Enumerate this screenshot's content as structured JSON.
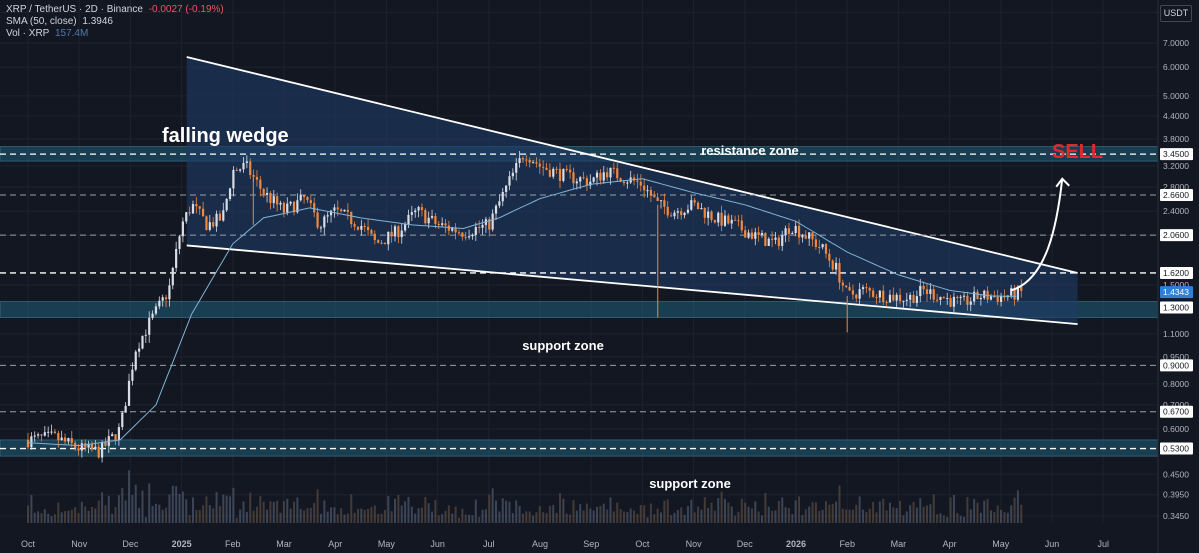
{
  "header": {
    "symbol": "XRP / TetherUS · 2D · Binance",
    "change": "-0.0027 (-0.19%)",
    "sma_label": "SMA (50, close)",
    "sma_value": "1.3946",
    "vol_label": "Vol · XRP",
    "vol_value": "157.4M",
    "currency_button": "USDT"
  },
  "colors": {
    "background": "#131722",
    "bull": "#d9dde6",
    "bear": "#f0883e",
    "sma": "#7fb4d6",
    "wedge_fill": "#1e3a66",
    "zone_fill": "#1f5f7a",
    "sell": "#e0282d",
    "grid": "#1e222d"
  },
  "chart_data": {
    "type": "candlestick",
    "x_labels": [
      "Oct",
      "Nov",
      "Dec",
      "2025",
      "Feb",
      "Mar",
      "Apr",
      "May",
      "Jun",
      "Jul",
      "Aug",
      "Sep",
      "Oct",
      "Nov",
      "Dec",
      "2026",
      "Feb",
      "Mar",
      "Apr",
      "May",
      "Jun",
      "Jul"
    ],
    "y_axis_ticks": [
      "8.5000",
      "7.0000",
      "6.0000",
      "5.0000",
      "4.4000",
      "3.8000",
      "3.2000",
      "2.8000",
      "2.4000",
      "2.0600",
      "1.5000",
      "1.1000",
      "0.9500",
      "0.8000",
      "0.7000",
      "0.6000",
      "0.4500",
      "0.3950",
      "0.3450"
    ],
    "y_scale": "log",
    "ylim": [
      0.33,
      9.2
    ],
    "price_tags": [
      {
        "value": "3.4500",
        "level": 3.45
      },
      {
        "value": "2.6600",
        "level": 2.66
      },
      {
        "value": "2.0600",
        "level": 2.06
      },
      {
        "value": "1.6200",
        "level": 1.62
      },
      {
        "value": "1.4343",
        "level": 1.4343,
        "current": true
      },
      {
        "value": "1.3000",
        "level": 1.3
      },
      {
        "value": "0.9000",
        "level": 0.9
      },
      {
        "value": "0.6700",
        "level": 0.67
      },
      {
        "value": "0.5300",
        "level": 0.53
      }
    ],
    "dashed_levels": [
      3.45,
      2.66,
      2.06,
      1.62,
      0.9,
      0.67,
      0.53
    ],
    "zones": [
      {
        "label": "resistance zone",
        "low": 3.3,
        "high": 3.62
      },
      {
        "label": "support zone",
        "low": 1.22,
        "high": 1.35
      },
      {
        "label": "support zone",
        "low": 0.505,
        "high": 0.56
      }
    ],
    "annotations": {
      "pattern": "falling wedge",
      "signal": "SELL"
    },
    "wedge": {
      "upper": [
        {
          "month": 3.1,
          "price": 6.4
        },
        {
          "month": 20.5,
          "price": 1.62
        }
      ],
      "lower": [
        {
          "month": 3.1,
          "price": 1.93
        },
        {
          "month": 20.5,
          "price": 1.17
        }
      ]
    },
    "arrow": [
      {
        "month": 19.2,
        "price": 1.45
      },
      {
        "month": 19.9,
        "price": 1.55
      },
      {
        "month": 20.1,
        "price": 2.2
      },
      {
        "month": 20.2,
        "price": 2.95
      }
    ],
    "anchors": [
      {
        "month": 0.0,
        "price": 0.56
      },
      {
        "month": 0.5,
        "price": 0.57
      },
      {
        "month": 1.0,
        "price": 0.53
      },
      {
        "month": 1.4,
        "price": 0.52
      },
      {
        "month": 1.8,
        "price": 0.6
      },
      {
        "month": 2.1,
        "price": 1.0
      },
      {
        "month": 2.4,
        "price": 1.2
      },
      {
        "month": 2.75,
        "price": 1.45
      },
      {
        "month": 3.0,
        "price": 2.2
      },
      {
        "month": 3.2,
        "price": 2.5
      },
      {
        "month": 3.5,
        "price": 2.2
      },
      {
        "month": 3.8,
        "price": 2.3
      },
      {
        "month": 4.0,
        "price": 3.1
      },
      {
        "month": 4.25,
        "price": 3.2
      },
      {
        "month": 4.6,
        "price": 2.7
      },
      {
        "month": 5.0,
        "price": 2.4
      },
      {
        "month": 5.4,
        "price": 2.6
      },
      {
        "month": 5.7,
        "price": 2.2
      },
      {
        "month": 6.0,
        "price": 2.4
      },
      {
        "month": 6.5,
        "price": 2.2
      },
      {
        "month": 6.8,
        "price": 1.95
      },
      {
        "month": 7.2,
        "price": 2.1
      },
      {
        "month": 7.6,
        "price": 2.4
      },
      {
        "month": 8.0,
        "price": 2.2
      },
      {
        "month": 8.5,
        "price": 2.1
      },
      {
        "month": 9.0,
        "price": 2.2
      },
      {
        "month": 9.4,
        "price": 2.9
      },
      {
        "month": 9.7,
        "price": 3.5
      },
      {
        "month": 10.0,
        "price": 3.2
      },
      {
        "month": 10.5,
        "price": 3.0
      },
      {
        "month": 11.0,
        "price": 2.9
      },
      {
        "month": 11.3,
        "price": 3.1
      },
      {
        "month": 11.7,
        "price": 2.95
      },
      {
        "month": 12.0,
        "price": 2.85
      },
      {
        "month": 12.3,
        "price": 2.5
      },
      {
        "month": 12.6,
        "price": 2.4
      },
      {
        "month": 13.0,
        "price": 2.5
      },
      {
        "month": 13.4,
        "price": 2.3
      },
      {
        "month": 13.8,
        "price": 2.2
      },
      {
        "month": 14.2,
        "price": 2.05
      },
      {
        "month": 14.6,
        "price": 1.95
      },
      {
        "month": 14.9,
        "price": 2.2
      },
      {
        "month": 15.2,
        "price": 2.05
      },
      {
        "month": 15.5,
        "price": 1.9
      },
      {
        "month": 15.8,
        "price": 1.65
      },
      {
        "month": 16.0,
        "price": 1.4
      },
      {
        "month": 16.3,
        "price": 1.45
      },
      {
        "month": 16.8,
        "price": 1.4
      },
      {
        "month": 17.2,
        "price": 1.38
      },
      {
        "month": 17.5,
        "price": 1.45
      },
      {
        "month": 17.8,
        "price": 1.4
      },
      {
        "month": 18.2,
        "price": 1.33
      },
      {
        "month": 18.6,
        "price": 1.4
      },
      {
        "month": 19.0,
        "price": 1.39
      },
      {
        "month": 19.4,
        "price": 1.43
      }
    ],
    "sma_anchors": [
      {
        "month": 0.0,
        "price": 0.55
      },
      {
        "month": 1.0,
        "price": 0.54
      },
      {
        "month": 1.8,
        "price": 0.56
      },
      {
        "month": 2.5,
        "price": 0.7
      },
      {
        "month": 3.2,
        "price": 1.25
      },
      {
        "month": 4.0,
        "price": 1.95
      },
      {
        "month": 4.6,
        "price": 2.3
      },
      {
        "month": 5.5,
        "price": 2.45
      },
      {
        "month": 6.5,
        "price": 2.3
      },
      {
        "month": 7.5,
        "price": 2.2
      },
      {
        "month": 8.5,
        "price": 2.15
      },
      {
        "month": 9.2,
        "price": 2.3
      },
      {
        "month": 10.0,
        "price": 2.6
      },
      {
        "month": 11.0,
        "price": 2.85
      },
      {
        "month": 12.0,
        "price": 2.95
      },
      {
        "month": 13.0,
        "price": 2.7
      },
      {
        "month": 14.0,
        "price": 2.5
      },
      {
        "month": 15.0,
        "price": 2.25
      },
      {
        "month": 16.0,
        "price": 1.85
      },
      {
        "month": 17.0,
        "price": 1.6
      },
      {
        "month": 18.0,
        "price": 1.45
      },
      {
        "month": 18.8,
        "price": 1.4
      },
      {
        "month": 19.4,
        "price": 1.395
      }
    ],
    "volume_note": "relative volume histogram at bottom"
  }
}
